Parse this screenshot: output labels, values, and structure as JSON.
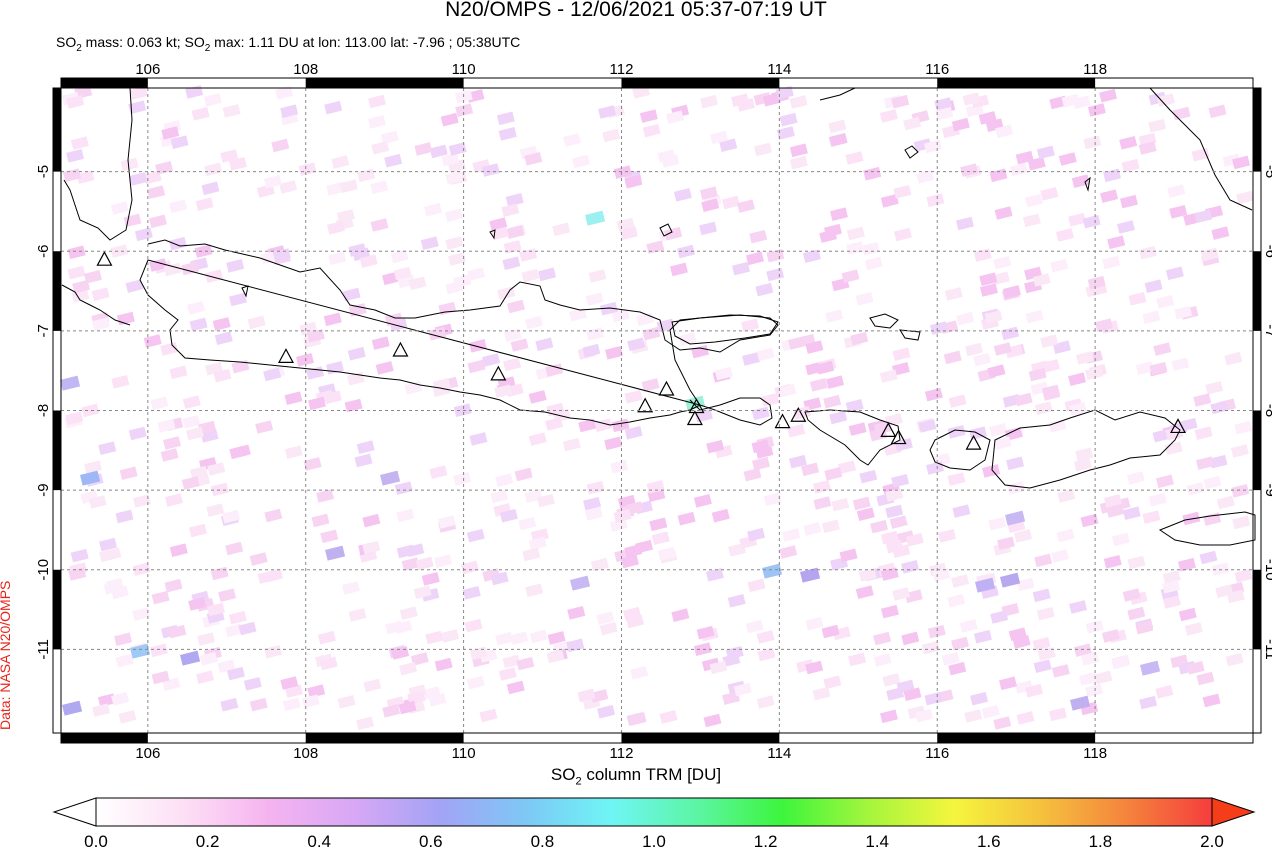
{
  "title": "N20/OMPS - 12/06/2021 05:37-07:19 UT",
  "subtitle": {
    "part1": "SO",
    "sub1": "2",
    "part2": " mass: 0.063 kt; SO",
    "sub2": "2",
    "part3": " max: 1.11 DU at lon: 113.00 lat: -7.96 ; 05:38UTC"
  },
  "credit": "Data: NASA N20/OMPS",
  "colorbar": {
    "title_main": "SO",
    "title_sub": "2",
    "title_rest": " column TRM [DU]",
    "ticks": [
      "0.0",
      "0.2",
      "0.4",
      "0.6",
      "0.8",
      "1.0",
      "1.2",
      "1.4",
      "1.6",
      "1.8",
      "2.0"
    ],
    "range": [
      0.0,
      2.0
    ],
    "colors": [
      "#ffffff",
      "#fde0f5",
      "#f5b4f0",
      "#d8a8f5",
      "#a3a3f5",
      "#7ec8f5",
      "#6ff5f5",
      "#5cf5a5",
      "#3df53d",
      "#a5f53d",
      "#f5f53d",
      "#f5c23d",
      "#f5843d",
      "#f53d3d"
    ]
  },
  "map": {
    "lon_range": [
      104.9,
      120.0
    ],
    "lat_range": [
      -12.05,
      -3.95
    ],
    "x_ticks": [
      "106",
      "108",
      "110",
      "112",
      "114",
      "116",
      "118"
    ],
    "y_ticks": [
      "-5",
      "-6",
      "-7",
      "-8",
      "-9",
      "-10",
      "-11"
    ],
    "grid": true,
    "coastline_color": "#000000",
    "max_marker": {
      "lon": 113.0,
      "lat": -7.96,
      "value": 1.11
    }
  },
  "volcano_names": []
}
